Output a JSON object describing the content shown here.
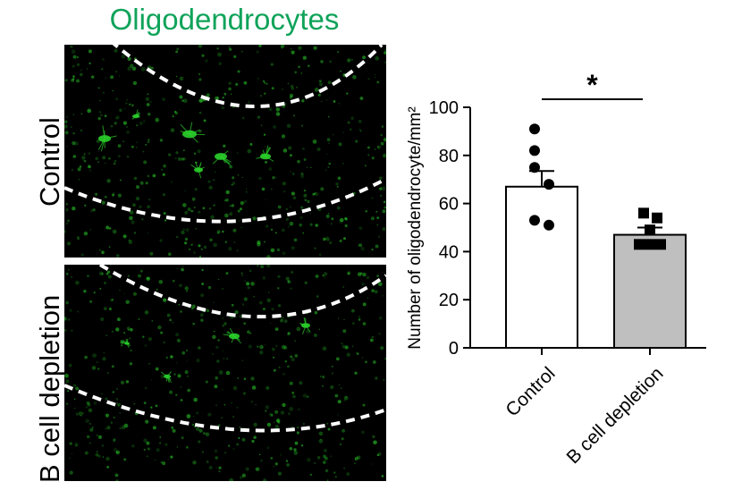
{
  "panel": {
    "title": "Oligodendrocytes",
    "title_color": "#0fa35a",
    "rows": [
      {
        "label": "Control"
      },
      {
        "label": "B cell depletion"
      }
    ]
  },
  "colors": {
    "micrograph_bg": "#000000",
    "signal": "#2bd12b",
    "dashed_line": "#ffffff",
    "control_bar": "#ffffff",
    "depletion_bar": "#bfbfbf"
  },
  "chart_data": {
    "type": "bar",
    "categories": [
      "Control",
      "B cell depletion"
    ],
    "ylabel": "Number of oligodendrocyte/mm²",
    "xlabel": "",
    "ylim": [
      0,
      100
    ],
    "yticks": [
      0,
      20,
      40,
      60,
      80,
      100
    ],
    "grid": false,
    "values": [
      67,
      47
    ],
    "sem": [
      6.5,
      3
    ],
    "points": [
      {
        "category": "Control",
        "marker": "circle",
        "values": [
          91,
          82,
          75,
          68,
          53,
          51
        ]
      },
      {
        "category": "B cell depletion",
        "marker": "square",
        "values": [
          56,
          54,
          49,
          43,
          43,
          43
        ]
      }
    ],
    "significance": {
      "between": [
        "Control",
        "B cell depletion"
      ],
      "label": "*"
    }
  }
}
